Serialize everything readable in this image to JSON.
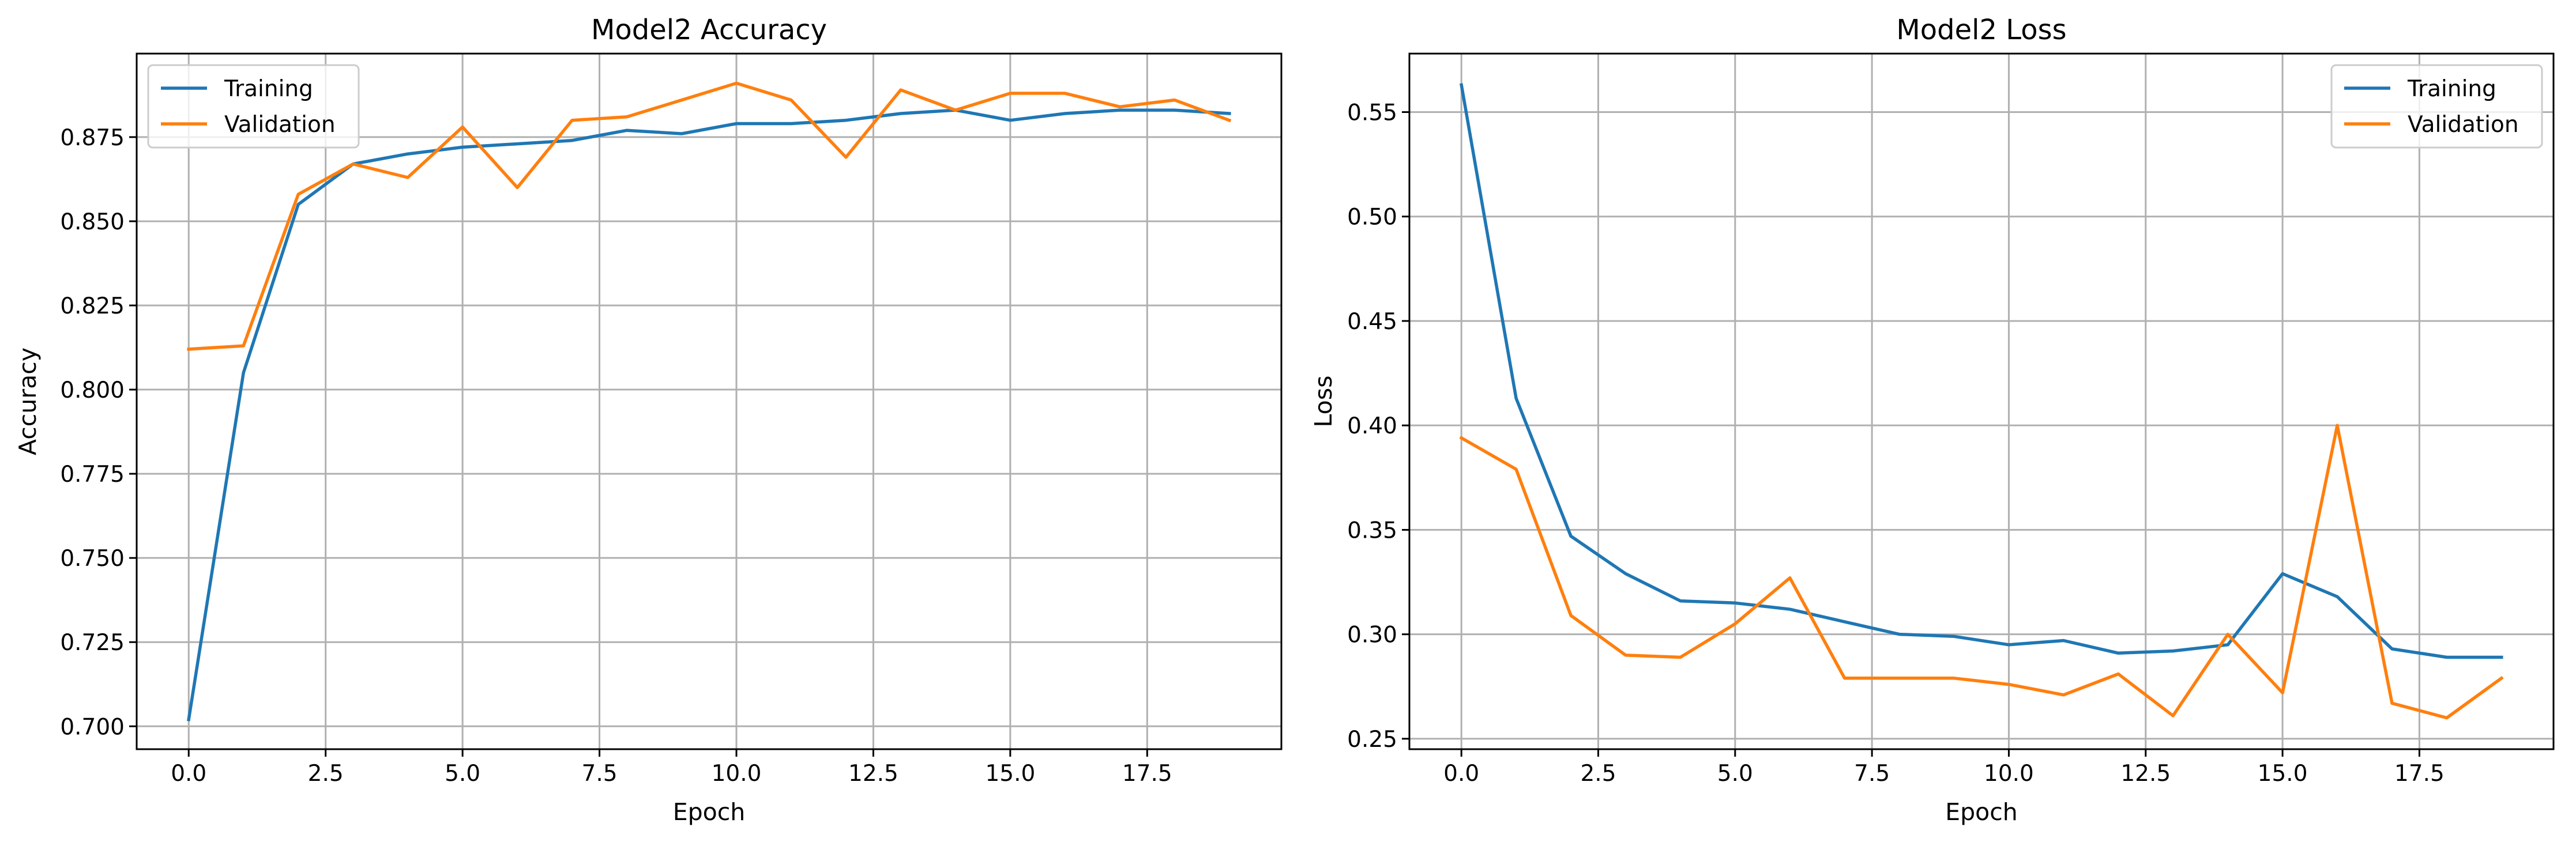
{
  "chart_data": [
    {
      "type": "line",
      "title": "Model2 Accuracy",
      "xlabel": "Epoch",
      "ylabel": "Accuracy",
      "xlim": [
        -0.95,
        19.95
      ],
      "ylim": [
        0.6932,
        0.8998
      ],
      "xticks": [
        0.0,
        2.5,
        5.0,
        7.5,
        10.0,
        12.5,
        15.0,
        17.5
      ],
      "xtick_labels": [
        "0.0",
        "2.5",
        "5.0",
        "7.5",
        "10.0",
        "12.5",
        "15.0",
        "17.5"
      ],
      "yticks": [
        0.7,
        0.725,
        0.75,
        0.775,
        0.8,
        0.825,
        0.85,
        0.875
      ],
      "ytick_labels": [
        "0.700",
        "0.725",
        "0.750",
        "0.775",
        "0.800",
        "0.825",
        "0.850",
        "0.875"
      ],
      "grid": true,
      "legend_position": "top-left",
      "x": [
        0,
        1,
        2,
        3,
        4,
        5,
        6,
        7,
        8,
        9,
        10,
        11,
        12,
        13,
        14,
        15,
        16,
        17,
        18,
        19
      ],
      "series": [
        {
          "name": "Training",
          "color": "#1f77b4",
          "values": [
            0.702,
            0.805,
            0.855,
            0.867,
            0.87,
            0.872,
            0.873,
            0.874,
            0.877,
            0.876,
            0.879,
            0.879,
            0.88,
            0.882,
            0.883,
            0.88,
            0.882,
            0.883,
            0.883,
            0.882
          ]
        },
        {
          "name": "Validation",
          "color": "#ff7f0e",
          "values": [
            0.812,
            0.813,
            0.858,
            0.867,
            0.863,
            0.878,
            0.86,
            0.88,
            0.881,
            0.886,
            0.891,
            0.886,
            0.869,
            0.889,
            0.883,
            0.888,
            0.888,
            0.884,
            0.886,
            0.88
          ]
        }
      ]
    },
    {
      "type": "line",
      "title": "Model2 Loss",
      "xlabel": "Epoch",
      "ylabel": "Loss",
      "xlim": [
        -0.95,
        19.95
      ],
      "ylim": [
        0.245,
        0.578
      ],
      "xticks": [
        0.0,
        2.5,
        5.0,
        7.5,
        10.0,
        12.5,
        15.0,
        17.5
      ],
      "xtick_labels": [
        "0.0",
        "2.5",
        "5.0",
        "7.5",
        "10.0",
        "12.5",
        "15.0",
        "17.5"
      ],
      "yticks": [
        0.25,
        0.3,
        0.35,
        0.4,
        0.45,
        0.5,
        0.55
      ],
      "ytick_labels": [
        "0.25",
        "0.30",
        "0.35",
        "0.40",
        "0.45",
        "0.50",
        "0.55"
      ],
      "grid": true,
      "legend_position": "top-right",
      "x": [
        0,
        1,
        2,
        3,
        4,
        5,
        6,
        7,
        8,
        9,
        10,
        11,
        12,
        13,
        14,
        15,
        16,
        17,
        18,
        19
      ],
      "series": [
        {
          "name": "Training",
          "color": "#1f77b4",
          "values": [
            0.563,
            0.413,
            0.347,
            0.329,
            0.316,
            0.315,
            0.312,
            0.306,
            0.3,
            0.299,
            0.295,
            0.297,
            0.291,
            0.292,
            0.295,
            0.329,
            0.318,
            0.293,
            0.289,
            0.289
          ]
        },
        {
          "name": "Validation",
          "color": "#ff7f0e",
          "values": [
            0.394,
            0.379,
            0.309,
            0.29,
            0.289,
            0.305,
            0.327,
            0.279,
            0.279,
            0.279,
            0.276,
            0.271,
            0.281,
            0.261,
            0.3,
            0.272,
            0.4,
            0.267,
            0.26,
            0.279
          ]
        }
      ]
    }
  ]
}
